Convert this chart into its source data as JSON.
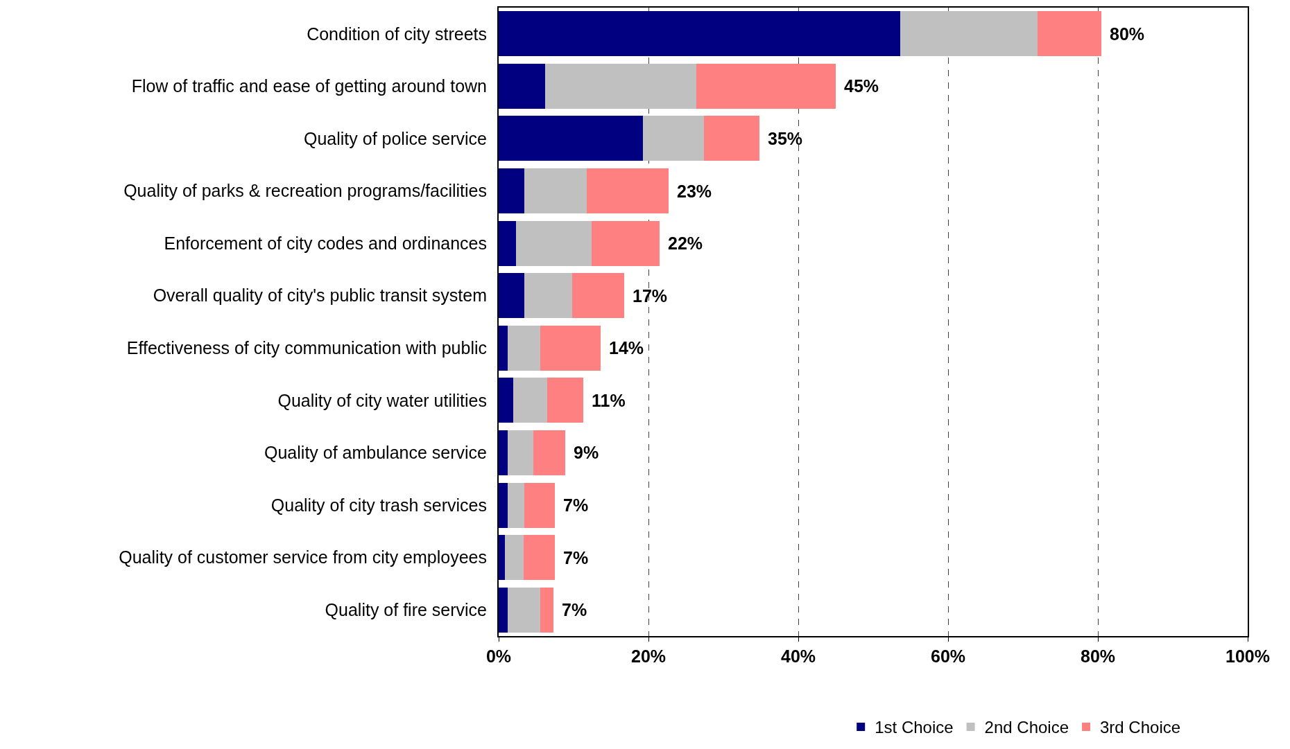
{
  "chart_data": {
    "type": "bar",
    "orientation": "horizontal",
    "stacked": true,
    "categories": [
      "Condition of city streets",
      "Flow of traffic and ease of getting around town",
      "Quality of police service",
      "Quality of parks & recreation programs/facilities",
      "Enforcement of city codes and ordinances",
      "Overall quality of city's public transit system",
      "Effectiveness of city communication with public",
      "Quality of city water utilities",
      "Quality of ambulance service",
      "Quality of city trash services",
      "Quality of customer service from city employees",
      "Quality of fire service"
    ],
    "series": [
      {
        "name": "1st Choice",
        "color": "#000080",
        "values": [
          53.6,
          6.2,
          19.3,
          3.4,
          2.3,
          3.4,
          1.2,
          1.9,
          1.2,
          1.2,
          0.8,
          1.2
        ]
      },
      {
        "name": "2nd Choice",
        "color": "#c0c0c0",
        "values": [
          18.3,
          20.2,
          8.1,
          8.4,
          10.1,
          6.4,
          4.4,
          4.6,
          3.4,
          2.2,
          2.5,
          4.4
        ]
      },
      {
        "name": "3rd Choice",
        "color": "#ff8080",
        "values": [
          8.6,
          18.6,
          7.4,
          10.9,
          9.1,
          7.0,
          8.0,
          4.8,
          4.3,
          4.1,
          4.2,
          1.7
        ]
      }
    ],
    "totals": [
      "80%",
      "45%",
      "35%",
      "23%",
      "22%",
      "17%",
      "14%",
      "11%",
      "9%",
      "7%",
      "7%",
      "7%"
    ],
    "xlim": [
      0,
      100
    ],
    "xticks": [
      {
        "value": 0,
        "label": "0%"
      },
      {
        "value": 20,
        "label": "20%"
      },
      {
        "value": 40,
        "label": "40%"
      },
      {
        "value": 60,
        "label": "60%"
      },
      {
        "value": 80,
        "label": "80%"
      },
      {
        "value": 100,
        "label": "100%"
      }
    ],
    "grid": "x",
    "legend": "bottom"
  }
}
